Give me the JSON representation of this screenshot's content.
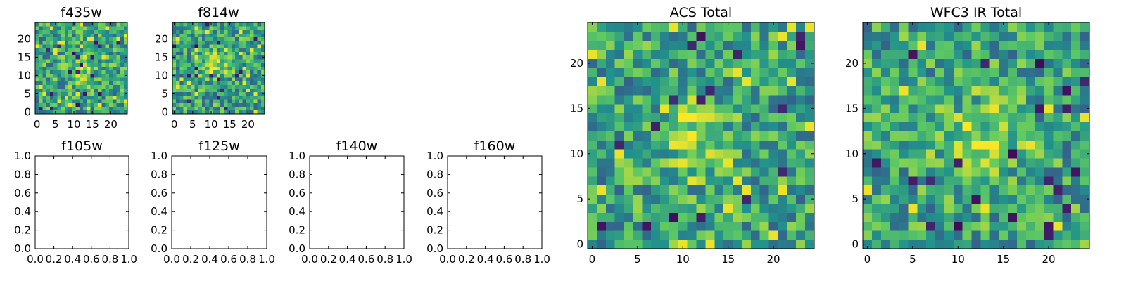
{
  "colors": {
    "cmap": [
      "#440154",
      "#3b528b",
      "#21918c",
      "#5ec962",
      "#fde725"
    ],
    "background": "#ffffff"
  },
  "chart_data": [
    {
      "type": "heatmap",
      "title": "f435w",
      "xlim": [
        -0.5,
        24.5
      ],
      "ylim": [
        -0.5,
        24.5
      ],
      "xticks": [
        0,
        5,
        10,
        15,
        20
      ],
      "yticks": [
        0,
        5,
        10,
        15,
        20
      ],
      "xtick_labels": [
        "0",
        "5",
        "10",
        "15",
        "20"
      ],
      "ytick_labels": [
        "0",
        "5",
        "10",
        "15",
        "20"
      ],
      "grid": false,
      "seed": 11,
      "center": [
        12,
        12
      ],
      "peak": 0.85,
      "rows": 25,
      "cols": 25
    },
    {
      "type": "heatmap",
      "title": "f814w",
      "xlim": [
        -0.5,
        24.5
      ],
      "ylim": [
        -0.5,
        24.5
      ],
      "xticks": [
        0,
        5,
        10,
        15,
        20
      ],
      "yticks": [
        0,
        5,
        10,
        15,
        20
      ],
      "xtick_labels": [
        "0",
        "5",
        "10",
        "15",
        "20"
      ],
      "ytick_labels": [
        "0",
        "5",
        "10",
        "15",
        "20"
      ],
      "grid": false,
      "seed": 23,
      "center": [
        11,
        13
      ],
      "peak": 0.9,
      "rows": 25,
      "cols": 25
    },
    {
      "type": "empty",
      "title": "f105w",
      "xlim": [
        0.0,
        1.0
      ],
      "ylim": [
        0.0,
        1.0
      ],
      "xticks": [
        0.0,
        0.2,
        0.4,
        0.6,
        0.8,
        1.0
      ],
      "yticks": [
        0.0,
        0.2,
        0.4,
        0.6,
        0.8,
        1.0
      ],
      "xtick_labels": [
        "0.0",
        "0.2",
        "0.4",
        "0.6",
        "0.8",
        "1.0"
      ],
      "ytick_labels": [
        "0.0",
        "0.2",
        "0.4",
        "0.6",
        "0.8",
        "1.0"
      ]
    },
    {
      "type": "empty",
      "title": "f125w",
      "xlim": [
        0.0,
        1.0
      ],
      "ylim": [
        0.0,
        1.0
      ],
      "xticks": [
        0.0,
        0.2,
        0.4,
        0.6,
        0.8,
        1.0
      ],
      "yticks": [
        0.0,
        0.2,
        0.4,
        0.6,
        0.8,
        1.0
      ],
      "xtick_labels": [
        "0.0",
        "0.2",
        "0.4",
        "0.6",
        "0.8",
        "1.0"
      ],
      "ytick_labels": [
        "0.0",
        "0.2",
        "0.4",
        "0.6",
        "0.8",
        "1.0"
      ]
    },
    {
      "type": "empty",
      "title": "f140w",
      "xlim": [
        0.0,
        1.0
      ],
      "ylim": [
        0.0,
        1.0
      ],
      "xticks": [
        0.0,
        0.2,
        0.4,
        0.6,
        0.8,
        1.0
      ],
      "yticks": [
        0.0,
        0.2,
        0.4,
        0.6,
        0.8,
        1.0
      ],
      "xtick_labels": [
        "0.0",
        "0.2",
        "0.4",
        "0.6",
        "0.8",
        "1.0"
      ],
      "ytick_labels": [
        "0.0",
        "0.2",
        "0.4",
        "0.6",
        "0.8",
        "1.0"
      ]
    },
    {
      "type": "empty",
      "title": "f160w",
      "xlim": [
        0.0,
        1.0
      ],
      "ylim": [
        0.0,
        1.0
      ],
      "xticks": [
        0.0,
        0.2,
        0.4,
        0.6,
        0.8,
        1.0
      ],
      "yticks": [
        0.0,
        0.2,
        0.4,
        0.6,
        0.8,
        1.0
      ],
      "xtick_labels": [
        "0.0",
        "0.2",
        "0.4",
        "0.6",
        "0.8",
        "1.0"
      ],
      "ytick_labels": [
        "0.0",
        "0.2",
        "0.4",
        "0.6",
        "0.8",
        "1.0"
      ]
    },
    {
      "type": "heatmap",
      "title": "ACS Total",
      "xlim": [
        -0.5,
        24.5
      ],
      "ylim": [
        -0.5,
        24.5
      ],
      "xticks": [
        0,
        5,
        10,
        15,
        20
      ],
      "yticks": [
        0,
        5,
        10,
        15,
        20
      ],
      "xtick_labels": [
        "0",
        "5",
        "10",
        "15",
        "20"
      ],
      "ytick_labels": [
        "0",
        "5",
        "10",
        "15",
        "20"
      ],
      "grid": false,
      "seed": 37,
      "center": [
        11,
        12
      ],
      "peak": 0.95,
      "rows": 25,
      "cols": 25
    },
    {
      "type": "heatmap",
      "title": "WFC3 IR Total",
      "xlim": [
        -0.5,
        24.5
      ],
      "ylim": [
        -0.5,
        24.5
      ],
      "xticks": [
        0,
        5,
        10,
        15,
        20
      ],
      "yticks": [
        0,
        5,
        10,
        15,
        20
      ],
      "xtick_labels": [
        "0",
        "5",
        "10",
        "15",
        "20"
      ],
      "ytick_labels": [
        "0",
        "5",
        "10",
        "15",
        "20"
      ],
      "grid": false,
      "seed": 53,
      "center": [
        12,
        12
      ],
      "peak": 0.9,
      "rows": 25,
      "cols": 25
    }
  ]
}
